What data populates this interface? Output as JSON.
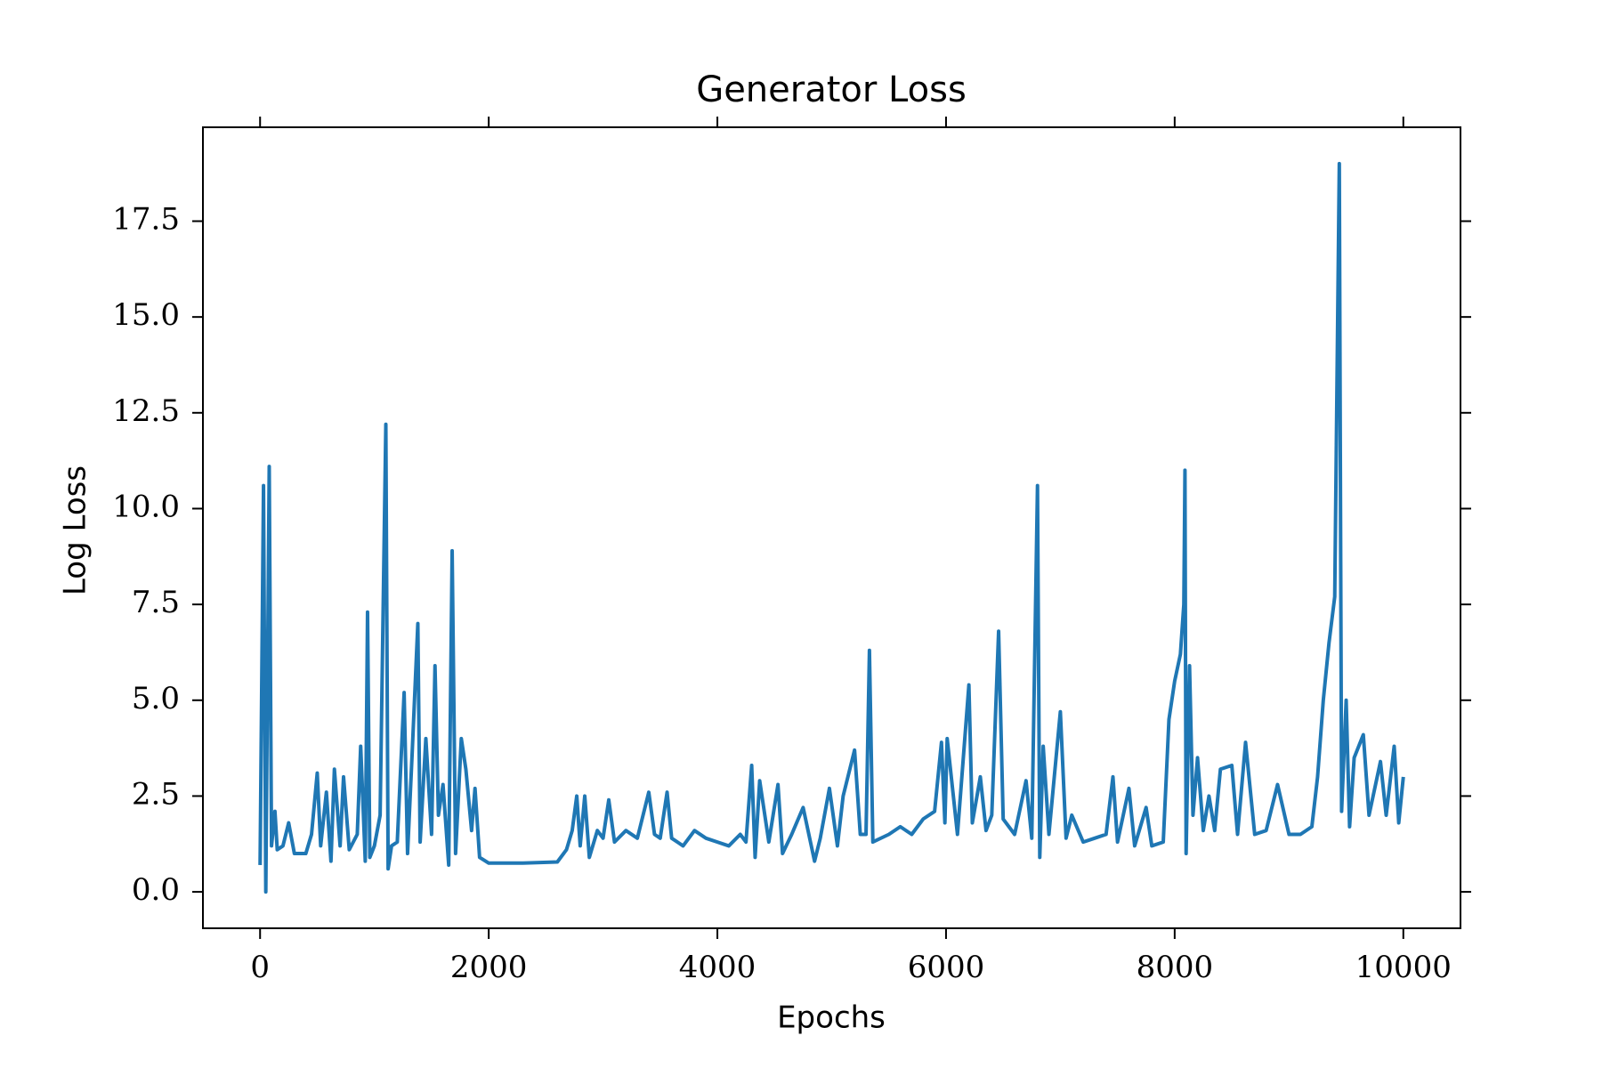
{
  "chart_data": {
    "type": "line",
    "title": "Generator Loss",
    "x_label": "Epochs",
    "y_label": "Log Loss",
    "color": "#1f77b4",
    "x": [
      0,
      30,
      50,
      80,
      100,
      130,
      150,
      200,
      250,
      300,
      400,
      450,
      500,
      530,
      580,
      620,
      650,
      700,
      730,
      780,
      850,
      880,
      920,
      940,
      960,
      1000,
      1050,
      1100,
      1120,
      1150,
      1200,
      1260,
      1290,
      1330,
      1380,
      1400,
      1450,
      1500,
      1530,
      1560,
      1600,
      1650,
      1680,
      1710,
      1760,
      1800,
      1850,
      1880,
      1920,
      2000,
      2300,
      2600,
      2680,
      2730,
      2770,
      2800,
      2840,
      2880,
      2950,
      3000,
      3050,
      3100,
      3200,
      3300,
      3400,
      3450,
      3500,
      3560,
      3600,
      3700,
      3800,
      3900,
      4000,
      4100,
      4200,
      4250,
      4300,
      4330,
      4370,
      4450,
      4530,
      4570,
      4650,
      4750,
      4850,
      4900,
      4980,
      5050,
      5100,
      5200,
      5250,
      5300,
      5330,
      5360,
      5500,
      5600,
      5700,
      5800,
      5900,
      5960,
      5990,
      6010,
      6100,
      6200,
      6230,
      6300,
      6350,
      6400,
      6460,
      6500,
      6600,
      6700,
      6750,
      6800,
      6820,
      6850,
      6900,
      7000,
      7050,
      7100,
      7200,
      7300,
      7400,
      7460,
      7500,
      7600,
      7650,
      7750,
      7800,
      7900,
      7950,
      8000,
      8050,
      8080,
      8090,
      8100,
      8130,
      8160,
      8200,
      8250,
      8300,
      8350,
      8400,
      8500,
      8550,
      8620,
      8700,
      8800,
      8900,
      9000,
      9100,
      9200,
      9250,
      9300,
      9350,
      9400,
      9440,
      9460,
      9500,
      9530,
      9570,
      9650,
      9700,
      9800,
      9850,
      9920,
      9960,
      10000
    ],
    "values": [
      0.7,
      10.6,
      0.0,
      11.1,
      1.2,
      2.1,
      1.1,
      1.2,
      1.8,
      1.0,
      1.0,
      1.5,
      3.1,
      1.2,
      2.6,
      0.8,
      3.2,
      1.2,
      3.0,
      1.1,
      1.5,
      3.8,
      0.8,
      7.3,
      0.9,
      1.2,
      2.0,
      12.2,
      0.6,
      1.2,
      1.3,
      5.2,
      1.0,
      3.6,
      7.0,
      1.3,
      4.0,
      1.5,
      5.9,
      2.0,
      2.8,
      0.7,
      8.9,
      1.0,
      4.0,
      3.2,
      1.6,
      2.7,
      0.9,
      0.75,
      0.75,
      0.78,
      1.1,
      1.6,
      2.5,
      1.2,
      2.5,
      0.9,
      1.6,
      1.4,
      2.4,
      1.3,
      1.6,
      1.4,
      2.6,
      1.5,
      1.4,
      2.6,
      1.4,
      1.2,
      1.6,
      1.4,
      1.3,
      1.2,
      1.5,
      1.3,
      3.3,
      0.9,
      2.9,
      1.3,
      2.8,
      1.0,
      1.5,
      2.2,
      0.8,
      1.4,
      2.7,
      1.2,
      2.5,
      3.7,
      1.5,
      1.5,
      6.3,
      1.3,
      1.5,
      1.7,
      1.5,
      1.9,
      2.1,
      3.9,
      1.8,
      4.0,
      1.5,
      5.4,
      1.8,
      3.0,
      1.6,
      2.0,
      6.8,
      1.9,
      1.5,
      2.9,
      1.4,
      10.6,
      0.9,
      3.8,
      1.5,
      4.7,
      1.4,
      2.0,
      1.3,
      1.4,
      1.5,
      3.0,
      1.3,
      2.7,
      1.2,
      2.2,
      1.2,
      1.3,
      4.5,
      5.5,
      6.2,
      7.5,
      11.0,
      1.0,
      5.9,
      2.0,
      3.5,
      1.6,
      2.5,
      1.6,
      3.2,
      3.3,
      1.5,
      3.9,
      1.5,
      1.6,
      2.8,
      1.5,
      1.5,
      1.7,
      3.0,
      5.0,
      6.5,
      7.7,
      19.0,
      2.1,
      5.0,
      1.7,
      3.5,
      4.1,
      2.0,
      3.4,
      2.0,
      3.8,
      1.8,
      3.0
    ],
    "xlim": [
      -500,
      10500
    ],
    "ylim": [
      -0.95,
      19.95
    ],
    "xticks": [
      0,
      2000,
      4000,
      6000,
      8000,
      10000
    ],
    "yticks": [
      {
        "value": 0,
        "label": "0.0"
      },
      2.5,
      {
        "value": 5,
        "label": "5.0"
      },
      7.5,
      {
        "value": 10,
        "label": "10.0"
      },
      12.5,
      {
        "value": 15,
        "label": "15.0"
      },
      17.5
    ],
    "grid": false
  }
}
